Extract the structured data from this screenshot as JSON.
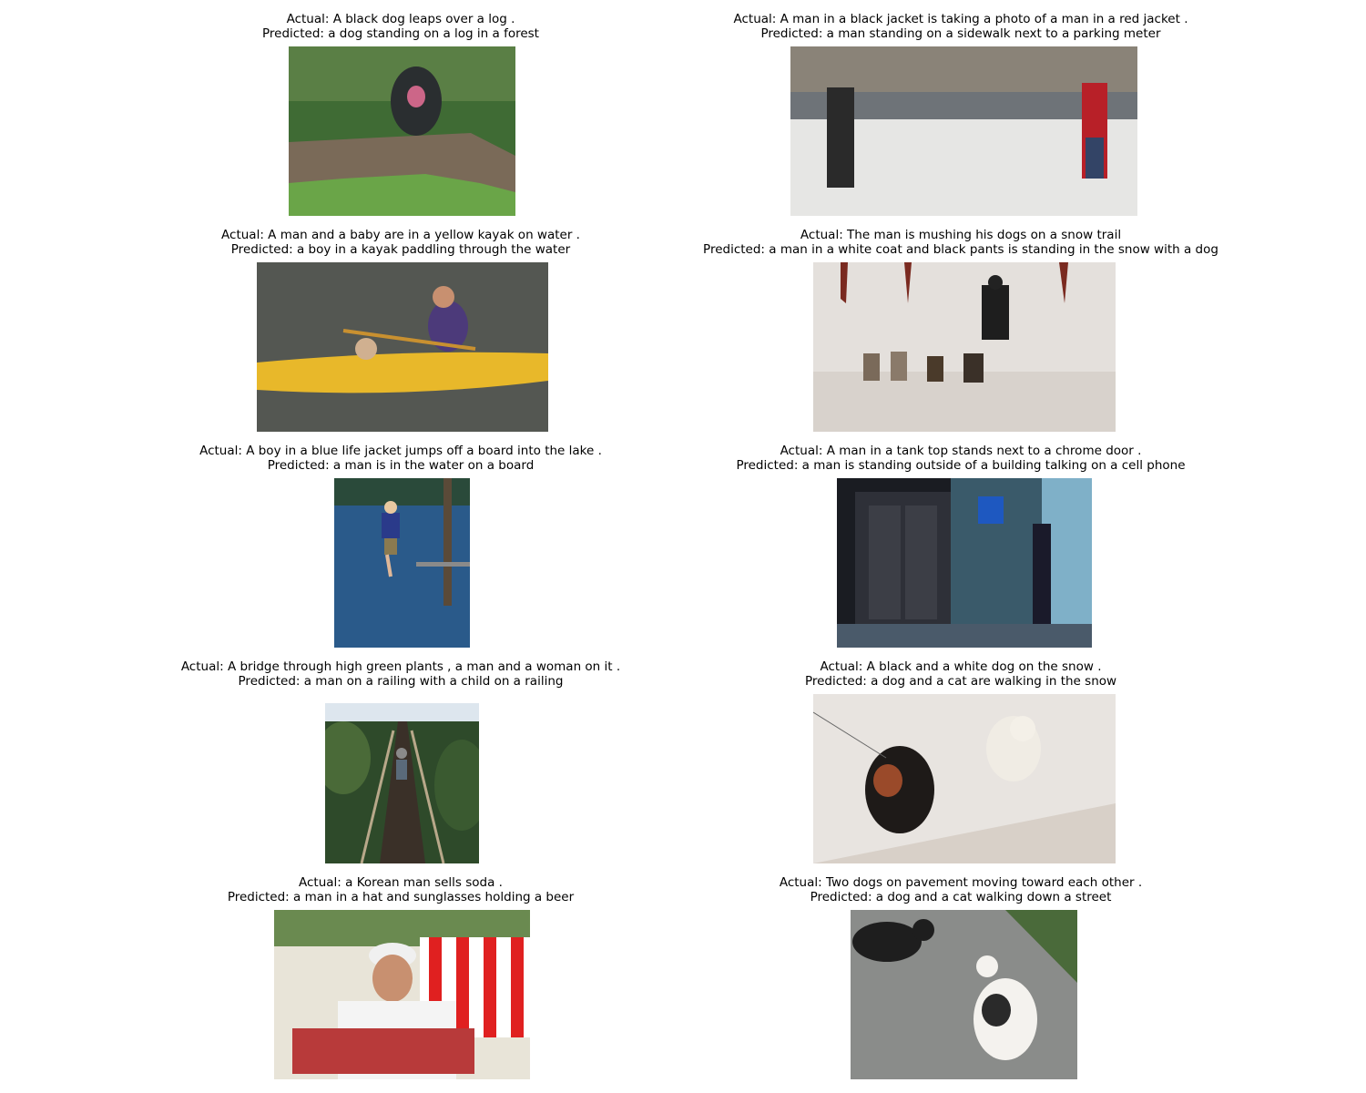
{
  "panels": [
    {
      "actual": "Actual: A black dog leaps over a log .",
      "predicted": "Predicted: a dog standing on a log in a forest",
      "scene": "dog-leaping-log-photo"
    },
    {
      "actual": "Actual: A man in a black jacket is taking a photo of a man in a red jacket .",
      "predicted": "Predicted: a man standing on a sidewalk next to a parking meter",
      "scene": "plaza-men-photo"
    },
    {
      "actual": "Actual: A man and a baby are in a yellow kayak on water .",
      "predicted": "Predicted: a boy in a kayak paddling through the water",
      "scene": "yellow-kayak-photo"
    },
    {
      "actual": "Actual: The man is mushing his dogs on a snow trail",
      "predicted": "Predicted: a man in a white coat and black pants is standing in the snow with a dog",
      "scene": "dog-sled-photo"
    },
    {
      "actual": "Actual: A boy in a blue life jacket jumps off a board into the lake .",
      "predicted": "Predicted: a man is in the water on a board",
      "scene": "boy-jumping-lake-photo"
    },
    {
      "actual": "Actual: A man in a tank top stands next to a chrome door .",
      "predicted": "Predicted: a man is standing outside of a building talking on a cell phone",
      "scene": "elevator-door-photo"
    },
    {
      "actual": "Actual: A bridge through high green plants , a man and a woman on it .",
      "predicted": "Predicted: a man on a railing with a child on a railing",
      "scene": "rope-bridge-photo"
    },
    {
      "actual": "Actual: A black and a white dog on the snow .",
      "predicted": "Predicted: a dog and a cat are walking in the snow",
      "scene": "dogs-snow-photo"
    },
    {
      "actual": "Actual: a Korean man sells soda .",
      "predicted": "Predicted: a man in a hat and sunglasses holding a beer",
      "scene": "soda-vendor-photo"
    },
    {
      "actual": "Actual: Two dogs on pavement moving toward each other .",
      "predicted": "Predicted: a dog and a cat walking down a street",
      "scene": "dogs-pavement-photo"
    }
  ]
}
